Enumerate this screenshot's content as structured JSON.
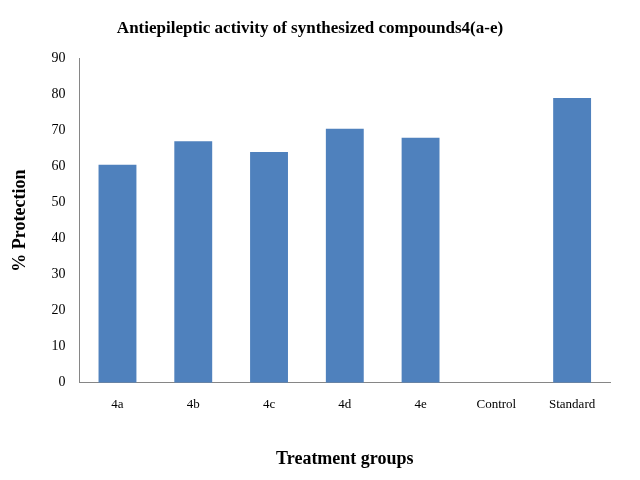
{
  "chart_data": {
    "type": "bar",
    "title": "Antiepileptic activity of synthesized compounds4(a-e)",
    "x_label": "Treatment groups",
    "y_label": "% Protection",
    "categories": [
      "4a",
      "4b",
      "4c",
      "4d",
      "4e",
      "Control",
      "Standard"
    ],
    "values": [
      60.5,
      67,
      64,
      70.5,
      68,
      0,
      79
    ],
    "color": "#4f81bd",
    "ylim": [
      0,
      90
    ],
    "yticks": [
      0,
      10,
      20,
      30,
      40,
      50,
      60,
      70,
      80,
      90
    ],
    "grid": false
  }
}
